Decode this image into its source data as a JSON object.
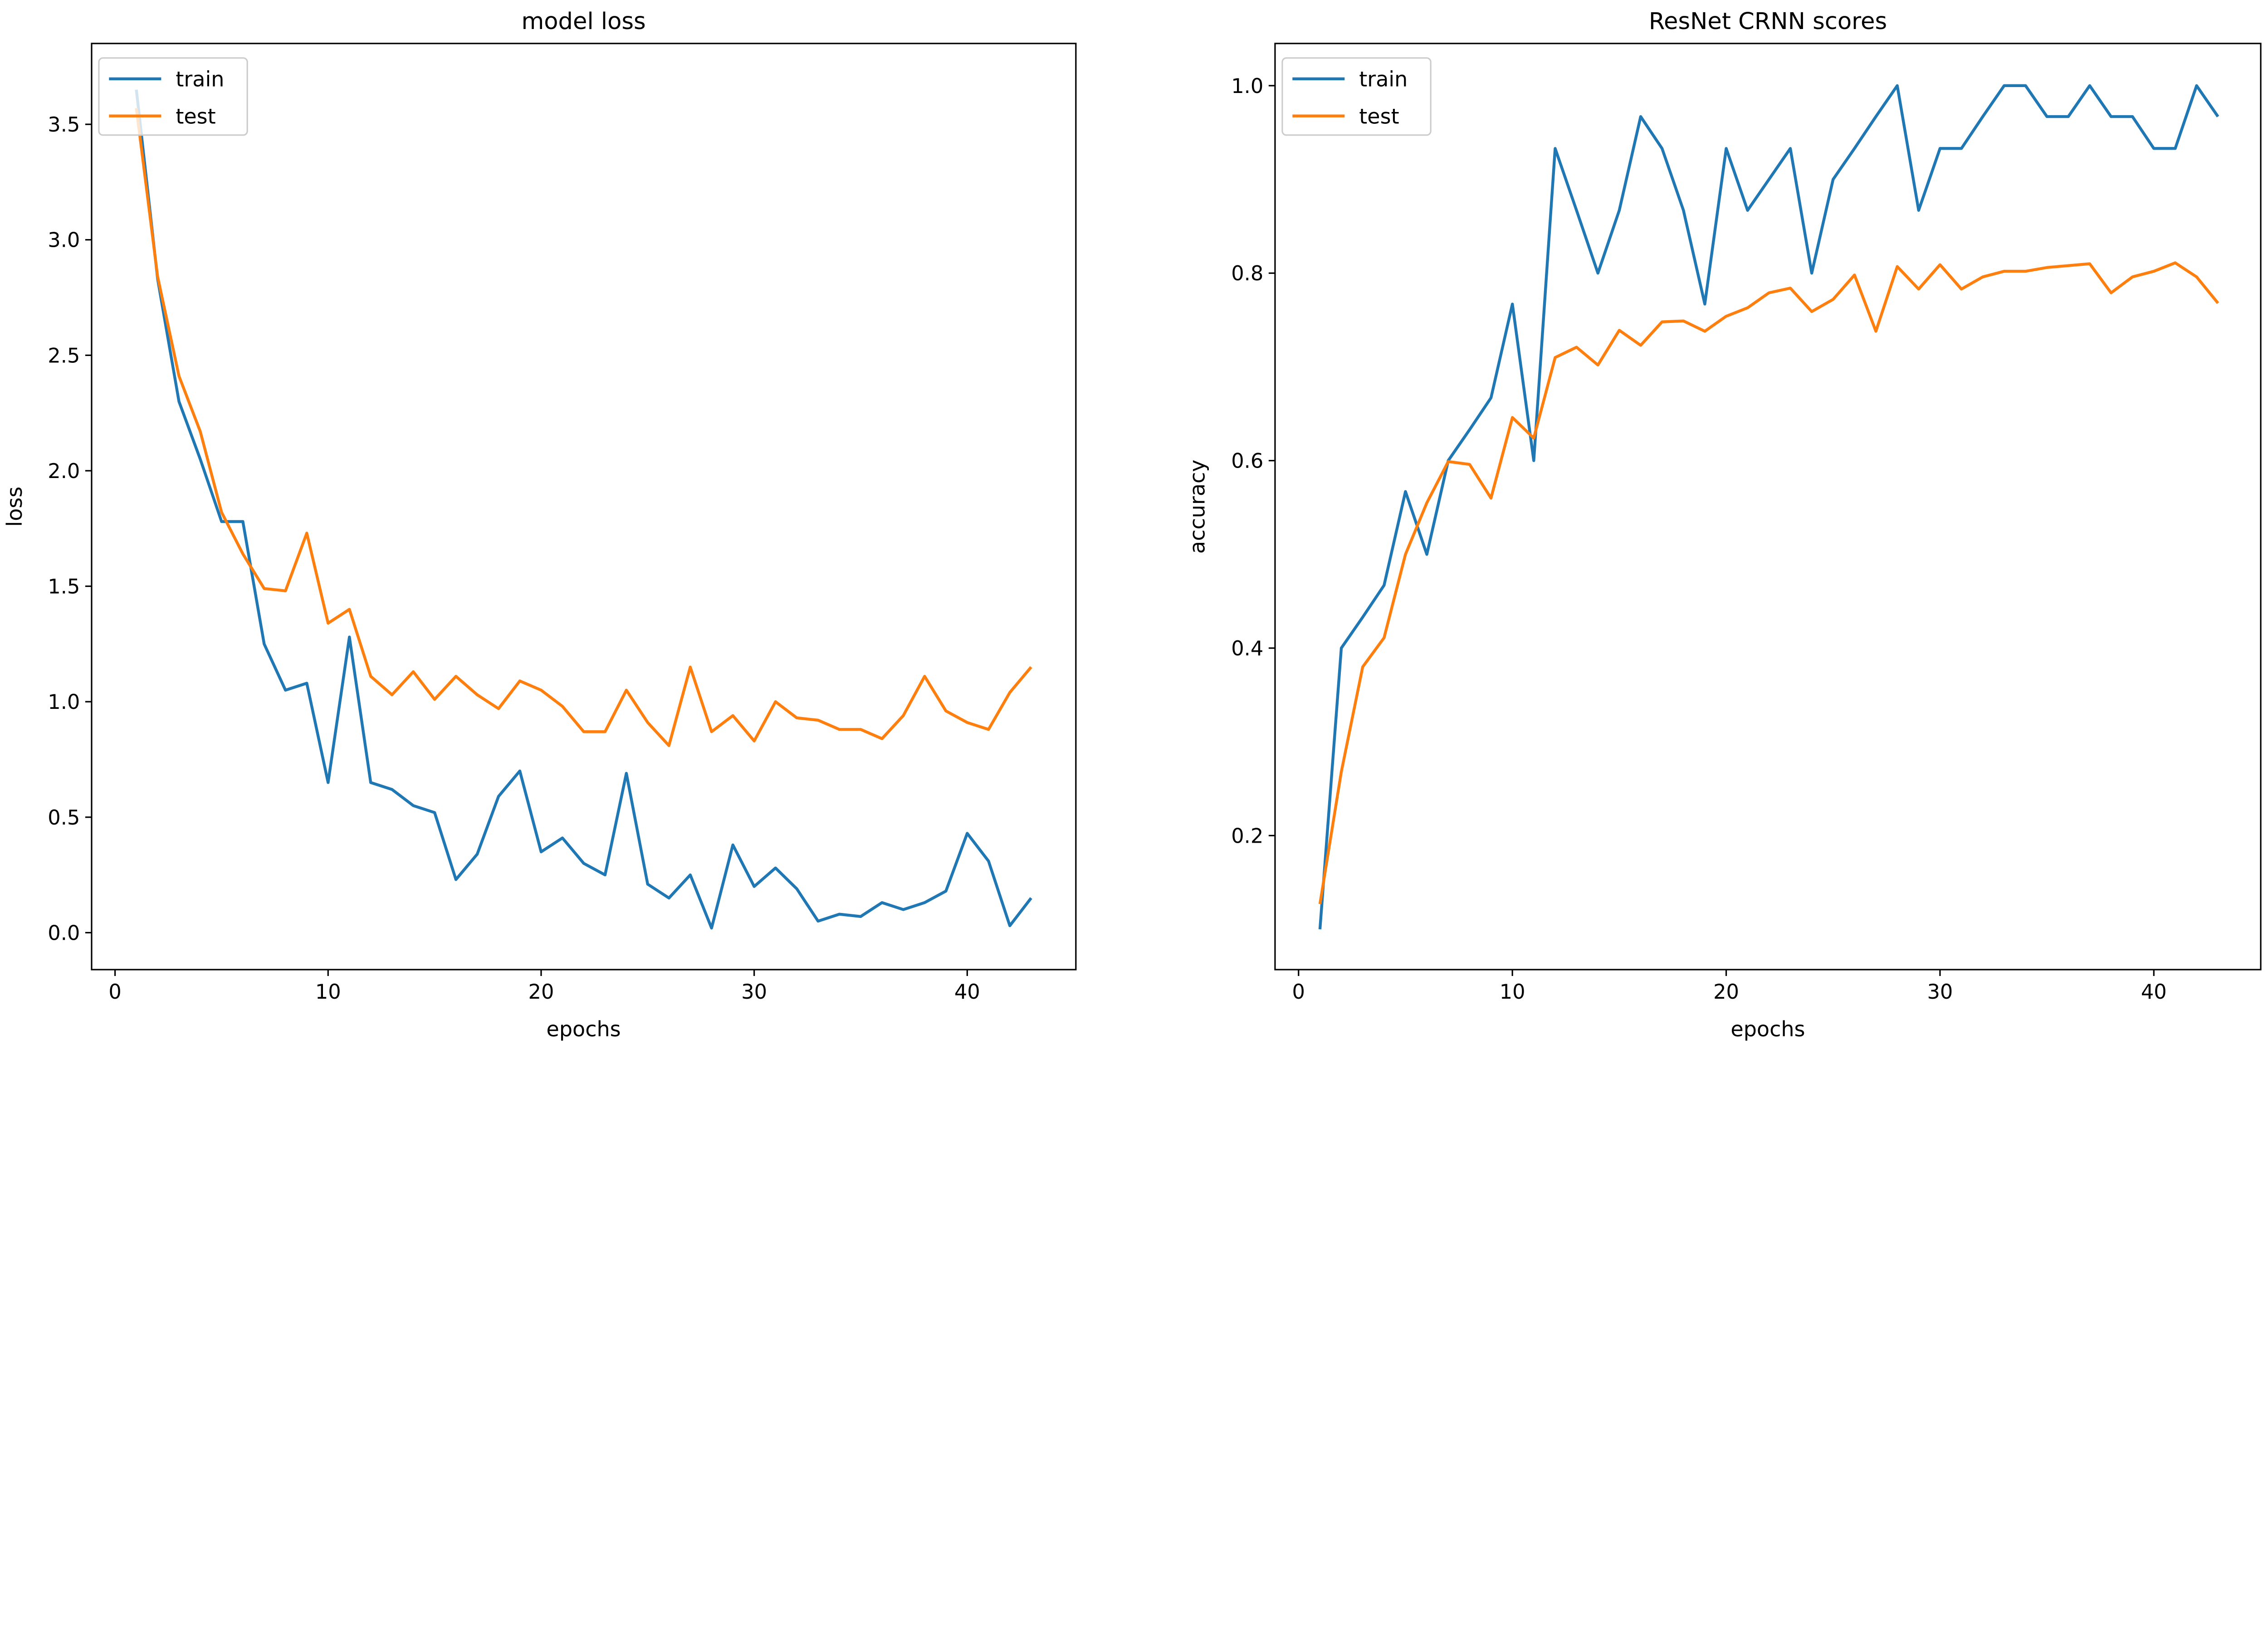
{
  "chart_data": [
    {
      "type": "line",
      "title": "model loss",
      "xlabel": "epochs",
      "ylabel": "loss",
      "xlim": [
        -1.1,
        45.1
      ],
      "ylim": [
        -0.16,
        3.85
      ],
      "xticks": [
        0,
        10,
        20,
        30,
        40
      ],
      "xtick_labels": [
        "0",
        "10",
        "20",
        "30",
        "40"
      ],
      "yticks": [
        0,
        0.5,
        1.0,
        1.5,
        2.0,
        2.5,
        3.0,
        3.5
      ],
      "ytick_labels": [
        "0.0",
        "0.5",
        "1.0",
        "1.5",
        "2.0",
        "2.5",
        "3.0",
        "3.5"
      ],
      "grid": false,
      "legend_position": "top-left",
      "x": [
        1,
        2,
        3,
        4,
        5,
        6,
        7,
        8,
        9,
        10,
        11,
        12,
        13,
        14,
        15,
        16,
        17,
        18,
        19,
        20,
        21,
        22,
        23,
        24,
        25,
        26,
        27,
        28,
        29,
        30,
        31,
        32,
        33,
        34,
        35,
        36,
        37,
        38,
        39,
        40,
        41,
        42,
        43
      ],
      "series": [
        {
          "name": "train",
          "color": "#1f77b4",
          "values": [
            3.65,
            2.83,
            2.3,
            2.05,
            1.78,
            1.78,
            1.25,
            1.05,
            1.08,
            0.65,
            1.28,
            0.65,
            0.62,
            0.55,
            0.52,
            0.23,
            0.34,
            0.59,
            0.7,
            0.35,
            0.41,
            0.3,
            0.25,
            0.69,
            0.21,
            0.15,
            0.25,
            0.02,
            0.38,
            0.2,
            0.28,
            0.19,
            0.05,
            0.08,
            0.07,
            0.13,
            0.1,
            0.13,
            0.18,
            0.43,
            0.31,
            0.03,
            0.15
          ]
        },
        {
          "name": "test",
          "color": "#ff7f0e",
          "values": [
            3.57,
            2.84,
            2.41,
            2.17,
            1.82,
            1.64,
            1.49,
            1.48,
            1.73,
            1.34,
            1.4,
            1.11,
            1.03,
            1.13,
            1.01,
            1.11,
            1.03,
            0.97,
            1.09,
            1.05,
            0.98,
            0.87,
            0.87,
            1.05,
            0.91,
            0.81,
            1.15,
            0.87,
            0.94,
            0.83,
            1.0,
            0.93,
            0.92,
            0.88,
            0.88,
            0.84,
            0.94,
            1.11,
            0.96,
            0.91,
            0.88,
            1.04,
            1.15
          ]
        }
      ]
    },
    {
      "type": "line",
      "title": "ResNet CRNN scores",
      "xlabel": "epochs",
      "ylabel": "accuracy",
      "xlim": [
        -1.1,
        45.0
      ],
      "ylim": [
        0.057,
        1.045
      ],
      "xticks": [
        0,
        10,
        20,
        30,
        40
      ],
      "xtick_labels": [
        "0",
        "10",
        "20",
        "30",
        "40"
      ],
      "yticks": [
        0.2,
        0.4,
        0.6,
        0.8,
        1.0
      ],
      "ytick_labels": [
        "0.2",
        "0.4",
        "0.6",
        "0.8",
        "1.0"
      ],
      "grid": false,
      "legend_position": "top-left",
      "x": [
        1,
        2,
        3,
        4,
        5,
        6,
        7,
        8,
        9,
        10,
        11,
        12,
        13,
        14,
        15,
        16,
        17,
        18,
        19,
        20,
        21,
        22,
        23,
        24,
        25,
        26,
        27,
        28,
        29,
        30,
        31,
        32,
        33,
        34,
        35,
        36,
        37,
        38,
        39,
        40,
        41,
        42,
        43
      ],
      "series": [
        {
          "name": "train",
          "color": "#1f77b4",
          "values": [
            0.1,
            0.4,
            0.433,
            0.467,
            0.567,
            0.5,
            0.6,
            0.633,
            0.667,
            0.767,
            0.6,
            0.933,
            0.867,
            0.8,
            0.867,
            0.967,
            0.933,
            0.867,
            0.767,
            0.933,
            0.867,
            0.9,
            0.933,
            0.8,
            0.9,
            0.933,
            0.967,
            1.0,
            0.867,
            0.933,
            0.933,
            0.967,
            1.0,
            1.0,
            0.967,
            0.967,
            1.0,
            0.967,
            0.967,
            0.933,
            0.933,
            1.0,
            0.967
          ]
        },
        {
          "name": "test",
          "color": "#ff7f0e",
          "values": [
            0.127,
            0.268,
            0.38,
            0.411,
            0.5,
            0.555,
            0.599,
            0.596,
            0.56,
            0.646,
            0.624,
            0.71,
            0.721,
            0.702,
            0.739,
            0.723,
            0.748,
            0.749,
            0.738,
            0.754,
            0.763,
            0.779,
            0.784,
            0.759,
            0.772,
            0.798,
            0.738,
            0.807,
            0.783,
            0.809,
            0.783,
            0.796,
            0.802,
            0.802,
            0.806,
            0.808,
            0.81,
            0.779,
            0.796,
            0.802,
            0.811,
            0.796,
            0.768
          ]
        }
      ]
    }
  ]
}
